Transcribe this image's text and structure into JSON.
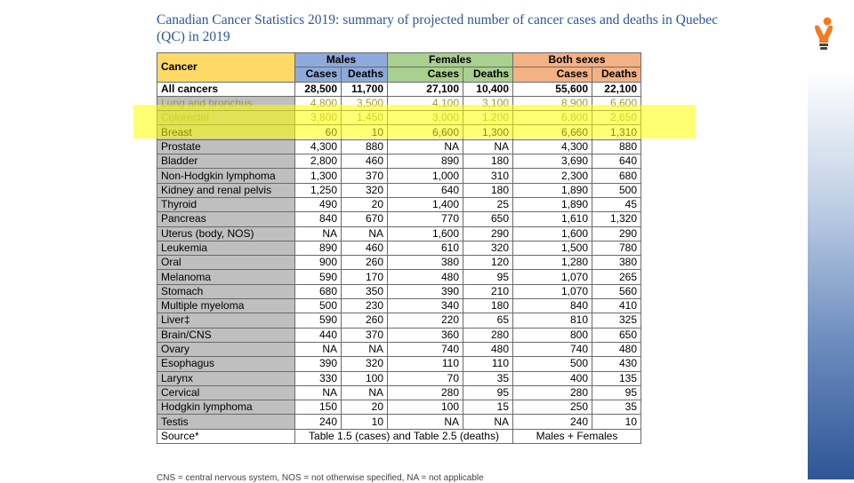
{
  "title": "Canadian Cancer Statistics 2019: summary of projected number of cancer cases and deaths in Quebec (QC) in 2019",
  "header": {
    "cancer": "Cancer",
    "males": "Males",
    "females": "Females",
    "both": "Both sexes",
    "cases": "Cases",
    "deaths": "Deaths"
  },
  "rows": [
    {
      "name": "All cancers",
      "m_cases": "28,500",
      "m_deaths": "11,700",
      "f_cases": "27,100",
      "f_deaths": "10,400",
      "b_cases": "55,600",
      "b_deaths": "22,100"
    },
    {
      "name": "Lung and bronchus",
      "m_cases": "4,800",
      "m_deaths": "3,500",
      "f_cases": "4,100",
      "f_deaths": "3,100",
      "b_cases": "8,900",
      "b_deaths": "6,600"
    },
    {
      "name": "Colorectal",
      "m_cases": "3,800",
      "m_deaths": "1,450",
      "f_cases": "3,000",
      "f_deaths": "1,200",
      "b_cases": "6,800",
      "b_deaths": "2,650"
    },
    {
      "name": "Breast",
      "m_cases": "60",
      "m_deaths": "10",
      "f_cases": "6,600",
      "f_deaths": "1,300",
      "b_cases": "6,660",
      "b_deaths": "1,310"
    },
    {
      "name": "Prostate",
      "m_cases": "4,300",
      "m_deaths": "880",
      "f_cases": "NA",
      "f_deaths": "NA",
      "b_cases": "4,300",
      "b_deaths": "880"
    },
    {
      "name": "Bladder",
      "m_cases": "2,800",
      "m_deaths": "460",
      "f_cases": "890",
      "f_deaths": "180",
      "b_cases": "3,690",
      "b_deaths": "640"
    },
    {
      "name": "Non-Hodgkin lymphoma",
      "m_cases": "1,300",
      "m_deaths": "370",
      "f_cases": "1,000",
      "f_deaths": "310",
      "b_cases": "2,300",
      "b_deaths": "680"
    },
    {
      "name": "Kidney and renal pelvis",
      "m_cases": "1,250",
      "m_deaths": "320",
      "f_cases": "640",
      "f_deaths": "180",
      "b_cases": "1,890",
      "b_deaths": "500"
    },
    {
      "name": "Thyroid",
      "m_cases": "490",
      "m_deaths": "20",
      "f_cases": "1,400",
      "f_deaths": "25",
      "b_cases": "1,890",
      "b_deaths": "45"
    },
    {
      "name": "Pancreas",
      "m_cases": "840",
      "m_deaths": "670",
      "f_cases": "770",
      "f_deaths": "650",
      "b_cases": "1,610",
      "b_deaths": "1,320"
    },
    {
      "name": "Uterus (body, NOS)",
      "m_cases": "NA",
      "m_deaths": "NA",
      "f_cases": "1,600",
      "f_deaths": "290",
      "b_cases": "1,600",
      "b_deaths": "290"
    },
    {
      "name": "Leukemia",
      "m_cases": "890",
      "m_deaths": "460",
      "f_cases": "610",
      "f_deaths": "320",
      "b_cases": "1,500",
      "b_deaths": "780"
    },
    {
      "name": "Oral",
      "m_cases": "900",
      "m_deaths": "260",
      "f_cases": "380",
      "f_deaths": "120",
      "b_cases": "1,280",
      "b_deaths": "380"
    },
    {
      "name": "Melanoma",
      "m_cases": "590",
      "m_deaths": "170",
      "f_cases": "480",
      "f_deaths": "95",
      "b_cases": "1,070",
      "b_deaths": "265"
    },
    {
      "name": "Stomach",
      "m_cases": "680",
      "m_deaths": "350",
      "f_cases": "390",
      "f_deaths": "210",
      "b_cases": "1,070",
      "b_deaths": "560"
    },
    {
      "name": "Multiple myeloma",
      "m_cases": "500",
      "m_deaths": "230",
      "f_cases": "340",
      "f_deaths": "180",
      "b_cases": "840",
      "b_deaths": "410"
    },
    {
      "name": "Liver‡",
      "m_cases": "590",
      "m_deaths": "260",
      "f_cases": "220",
      "f_deaths": "65",
      "b_cases": "810",
      "b_deaths": "325"
    },
    {
      "name": "Brain/CNS",
      "m_cases": "440",
      "m_deaths": "370",
      "f_cases": "360",
      "f_deaths": "280",
      "b_cases": "800",
      "b_deaths": "650"
    },
    {
      "name": "Ovary",
      "m_cases": "NA",
      "m_deaths": "NA",
      "f_cases": "740",
      "f_deaths": "480",
      "b_cases": "740",
      "b_deaths": "480"
    },
    {
      "name": "Esophagus",
      "m_cases": "390",
      "m_deaths": "320",
      "f_cases": "110",
      "f_deaths": "110",
      "b_cases": "500",
      "b_deaths": "430"
    },
    {
      "name": "Larynx",
      "m_cases": "330",
      "m_deaths": "100",
      "f_cases": "70",
      "f_deaths": "35",
      "b_cases": "400",
      "b_deaths": "135"
    },
    {
      "name": "Cervical",
      "m_cases": "NA",
      "m_deaths": "NA",
      "f_cases": "280",
      "f_deaths": "95",
      "b_cases": "280",
      "b_deaths": "95"
    },
    {
      "name": "Hodgkin lymphoma",
      "m_cases": "150",
      "m_deaths": "20",
      "f_cases": "100",
      "f_deaths": "15",
      "b_cases": "250",
      "b_deaths": "35"
    },
    {
      "name": "Testis",
      "m_cases": "240",
      "m_deaths": "10",
      "f_cases": "NA",
      "f_deaths": "NA",
      "b_cases": "240",
      "b_deaths": "10"
    }
  ],
  "source": {
    "label": "Source*",
    "mf": "Table 1.5 (cases) and Table 2.5 (deaths)",
    "both": "Males + Females"
  },
  "footnote": "CNS = central nervous system, NOS = not otherwise specified, NA = not applicable",
  "logo": {
    "icon": "lightbulb-person-logo-icon",
    "color": "#f47b20"
  }
}
